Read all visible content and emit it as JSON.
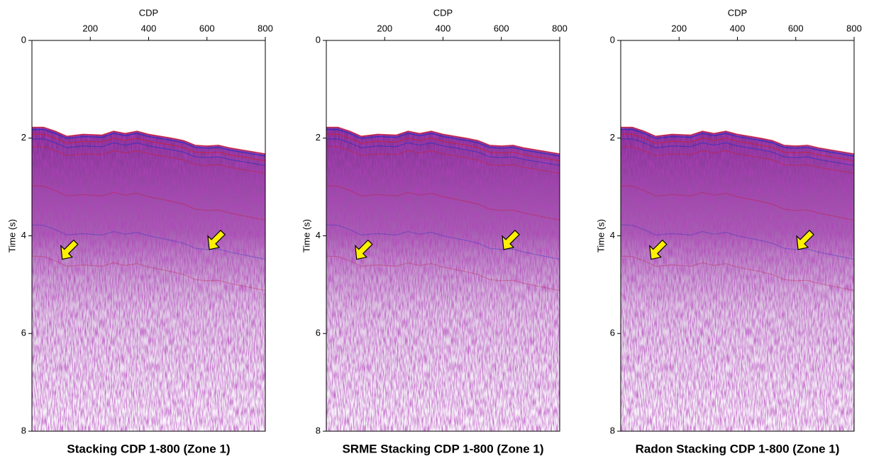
{
  "chart_data": [
    {
      "type": "seismic",
      "title": "Stacking CDP 1-800 (Zone 1)",
      "xlabel": "CDP",
      "ylabel": "Time (s)",
      "xlim": [
        0,
        800
      ],
      "xticks": [
        200,
        400,
        600,
        800
      ],
      "ylim": [
        0,
        8
      ],
      "yticks": [
        0,
        2,
        4,
        6,
        8
      ],
      "y_inverted": true,
      "x_axis_top": true
    },
    {
      "type": "seismic",
      "title": "SRME Stacking CDP 1-800 (Zone 1)",
      "xlabel": "CDP",
      "ylabel": "Time (s)",
      "xlim": [
        0,
        800
      ],
      "xticks": [
        200,
        400,
        600,
        800
      ],
      "ylim": [
        0,
        8
      ],
      "yticks": [
        0,
        2,
        4,
        6,
        8
      ],
      "y_inverted": true,
      "x_axis_top": true
    },
    {
      "type": "seismic",
      "title": "Radon Stacking CDP 1-800 (Zone 1)",
      "xlabel": "CDP",
      "ylabel": "Time (s)",
      "xlim": [
        0,
        800
      ],
      "xticks": [
        200,
        400,
        600,
        800
      ],
      "ylim": [
        0,
        8
      ],
      "yticks": [
        0,
        2,
        4,
        6,
        8
      ],
      "y_inverted": true,
      "x_axis_top": true
    }
  ]
}
